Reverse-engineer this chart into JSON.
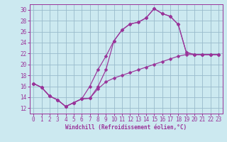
{
  "xlabel": "Windchill (Refroidissement éolien,°C)",
  "bg_color": "#cce9f0",
  "line_color": "#993399",
  "grid_color": "#99bbcc",
  "ylim": [
    11,
    31
  ],
  "xlim": [
    -0.5,
    23.5
  ],
  "yticks": [
    12,
    14,
    16,
    18,
    20,
    22,
    24,
    26,
    28,
    30
  ],
  "xticks": [
    0,
    1,
    2,
    3,
    4,
    5,
    6,
    7,
    8,
    9,
    10,
    11,
    12,
    13,
    14,
    15,
    16,
    17,
    18,
    19,
    20,
    21,
    22,
    23
  ],
  "line1_x": [
    0,
    1,
    2,
    3,
    4,
    5,
    6,
    7,
    8,
    9,
    10,
    11,
    12,
    13,
    14,
    15,
    16,
    17,
    18,
    19,
    20,
    21,
    22,
    23
  ],
  "line1_y": [
    16.5,
    15.8,
    14.2,
    13.5,
    12.3,
    13.0,
    13.7,
    13.8,
    15.9,
    19.0,
    24.3,
    26.3,
    27.4,
    27.7,
    28.5,
    30.2,
    29.3,
    28.8,
    27.3,
    22.2,
    21.8,
    21.8,
    21.8,
    21.8
  ],
  "line2_x": [
    0,
    1,
    2,
    3,
    4,
    5,
    6,
    7,
    8,
    9,
    10,
    11,
    12,
    13,
    14,
    15,
    16,
    17,
    18,
    19,
    20,
    21,
    22,
    23
  ],
  "line2_y": [
    16.5,
    15.8,
    14.2,
    13.5,
    12.3,
    13.0,
    13.7,
    16.0,
    19.0,
    21.5,
    24.3,
    26.3,
    27.4,
    27.7,
    28.5,
    30.2,
    29.3,
    28.8,
    27.3,
    22.2,
    21.8,
    21.8,
    21.8,
    21.8
  ],
  "line3_x": [
    0,
    1,
    2,
    3,
    4,
    5,
    6,
    7,
    8,
    9,
    10,
    11,
    12,
    13,
    14,
    15,
    16,
    17,
    18,
    19,
    20,
    21,
    22,
    23
  ],
  "line3_y": [
    16.5,
    15.8,
    14.2,
    13.5,
    12.3,
    13.0,
    13.7,
    13.8,
    15.5,
    16.8,
    17.5,
    18.0,
    18.5,
    19.0,
    19.5,
    20.0,
    20.5,
    21.0,
    21.5,
    21.8,
    21.8,
    21.8,
    21.8,
    21.8
  ]
}
